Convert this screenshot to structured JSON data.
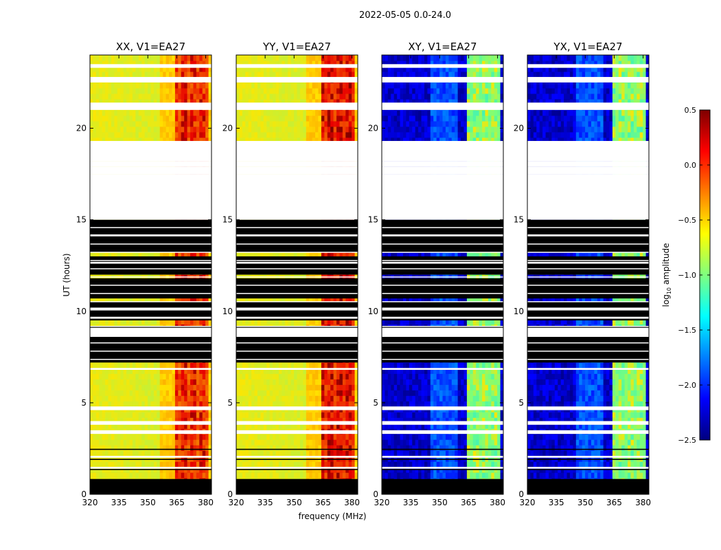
{
  "figure": {
    "suptitle": "2022-05-05 0.0-24.0",
    "xlabel": "frequency (MHz)",
    "ylabel": "UT (hours)",
    "colorbar_label": "log10 amplitude",
    "colorbar_label_base": "log",
    "colorbar_label_sub": "10",
    "colorbar_label_rest": " amplitude",
    "colorbar_ticks": [
      "0.5",
      "0.0",
      "−0.5",
      "−1.0",
      "−1.5",
      "−2.0",
      "−2.5"
    ],
    "colorbar_range": [
      -2.5,
      0.5
    ],
    "colormap": "jet",
    "colors": {
      "jet": [
        "#00007f",
        "#0000ff",
        "#007fff",
        "#00ffff",
        "#7fff7f",
        "#ffff00",
        "#ff7f00",
        "#ff0000",
        "#7f0000"
      ]
    }
  },
  "chart_data": [
    {
      "type": "heatmap",
      "title": "XX, V1=EA27",
      "xlabel": "frequency (MHz)",
      "ylabel": "UT (hours)",
      "xlim": [
        320,
        383
      ],
      "ylim": [
        0,
        24
      ],
      "xticks": [
        "320",
        "335",
        "350",
        "365",
        "380"
      ],
      "yticks": [
        "0",
        "5",
        "10",
        "15",
        "20"
      ],
      "mean_log10_amplitude": -0.5,
      "rfi_band_log10_amplitude": 0.1
    },
    {
      "type": "heatmap",
      "title": "YY, V1=EA27",
      "xlabel": "frequency (MHz)",
      "ylabel": "UT (hours)",
      "xlim": [
        320,
        383
      ],
      "ylim": [
        0,
        24
      ],
      "xticks": [
        "320",
        "335",
        "350",
        "365",
        "380"
      ],
      "yticks": [
        "0",
        "5",
        "10",
        "15",
        "20"
      ],
      "mean_log10_amplitude": -0.5,
      "rfi_band_log10_amplitude": 0.2
    },
    {
      "type": "heatmap",
      "title": "XY, V1=EA27",
      "xlabel": "frequency (MHz)",
      "ylabel": "UT (hours)",
      "xlim": [
        320,
        383
      ],
      "ylim": [
        0,
        24
      ],
      "xticks": [
        "320",
        "335",
        "350",
        "365",
        "380"
      ],
      "yticks": [
        "0",
        "5",
        "10",
        "15",
        "20"
      ],
      "mean_log10_amplitude": -2.3,
      "rfi_band_log10_amplitude": -0.9
    },
    {
      "type": "heatmap",
      "title": "YX, V1=EA27",
      "xlabel": "frequency (MHz)",
      "ylabel": "UT (hours)",
      "xlim": [
        320,
        383
      ],
      "ylim": [
        0,
        24
      ],
      "xticks": [
        "320",
        "335",
        "350",
        "365",
        "380"
      ],
      "yticks": [
        "0",
        "5",
        "10",
        "15",
        "20"
      ],
      "mean_log10_amplitude": -2.3,
      "rfi_band_log10_amplitude": -0.9
    }
  ]
}
